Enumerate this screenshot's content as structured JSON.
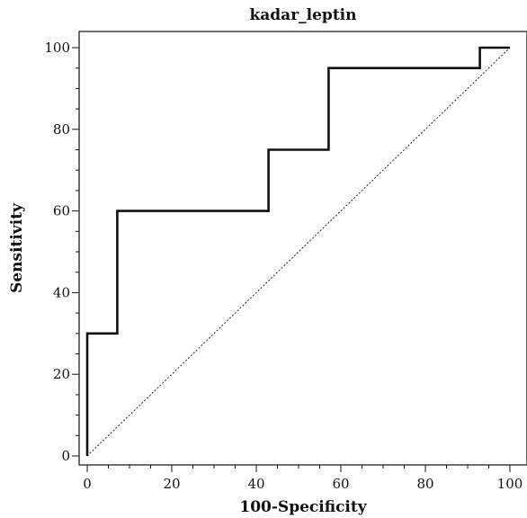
{
  "chart_data": {
    "type": "line",
    "title": "kadar_leptin",
    "xlabel": "100-Specificity",
    "ylabel": "Sensitivity",
    "xlim": [
      0,
      100
    ],
    "ylim": [
      0,
      100
    ],
    "major_ticks": [
      0,
      20,
      40,
      60,
      80,
      100
    ],
    "minor_step": 5,
    "grid": false,
    "legend": "none",
    "series": [
      {
        "style": "solid-step",
        "x": [
          0,
          0,
          7.1,
          7.1,
          42.9,
          42.9,
          57.1,
          57.1,
          92.9,
          92.9,
          100
        ],
        "y": [
          0,
          30,
          30,
          60,
          60,
          75,
          75,
          95,
          95,
          100,
          100
        ]
      },
      {
        "style": "dotted-diagonal",
        "x": [
          0,
          100
        ],
        "y": [
          0,
          100
        ]
      }
    ]
  }
}
